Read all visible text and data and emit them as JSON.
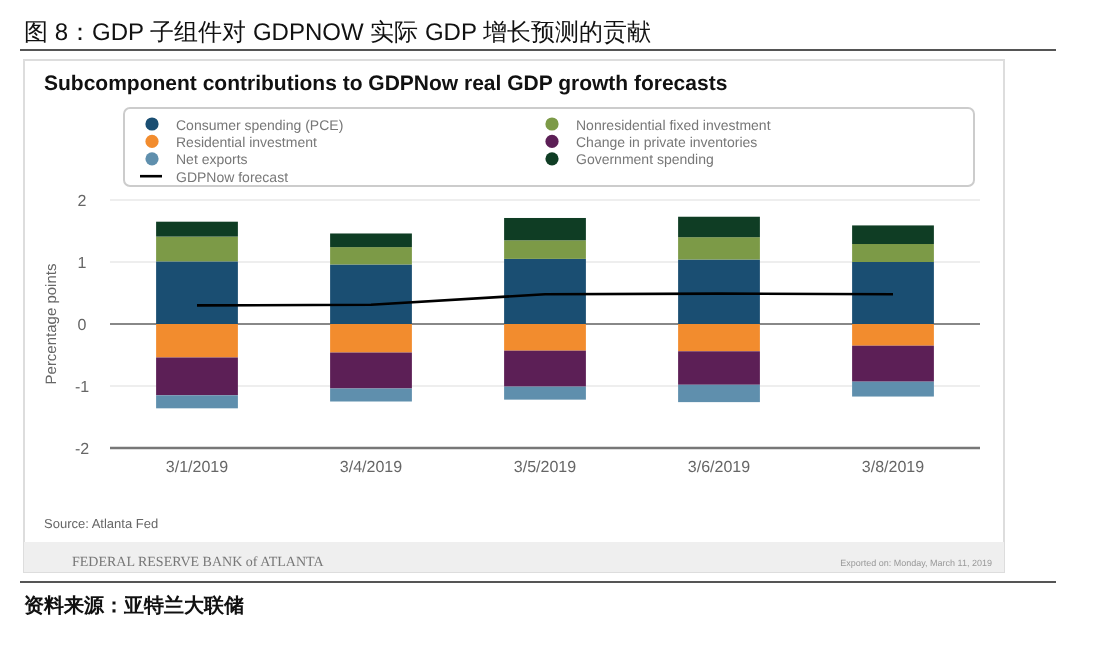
{
  "chart_data": {
    "type": "bar",
    "stacked": true,
    "title": "图 8：GDP 子组件对 GDPNOW 实际 GDP 增长预测的贡献",
    "subtitle": "Subcomponent contributions to GDPNow real GDP growth forecasts",
    "ylabel": "Percentage points",
    "categories": [
      "3/1/2019",
      "3/4/2019",
      "3/5/2019",
      "3/6/2019",
      "3/8/2019"
    ],
    "series": [
      {
        "name": "Consumer spending (PCE)",
        "color": "#1a4e72",
        "values": [
          1.01,
          0.96,
          1.05,
          1.04,
          1.0
        ]
      },
      {
        "name": "Nonresidential fixed investment",
        "color": "#7c9a47",
        "values": [
          0.4,
          0.28,
          0.3,
          0.36,
          0.29
        ]
      },
      {
        "name": "Residential investment",
        "color": "#f28c2e",
        "values": [
          -0.54,
          -0.46,
          -0.43,
          -0.44,
          -0.35
        ]
      },
      {
        "name": "Change in private inventories",
        "color": "#5c1f56",
        "values": [
          -0.61,
          -0.58,
          -0.58,
          -0.54,
          -0.58
        ]
      },
      {
        "name": "Net exports",
        "color": "#5f8fad",
        "values": [
          -0.21,
          -0.21,
          -0.21,
          -0.28,
          -0.24
        ]
      },
      {
        "name": "Government spending",
        "color": "#0f3d24",
        "values": [
          0.24,
          0.22,
          0.36,
          0.33,
          0.3
        ]
      },
      {
        "name": "GDPNow forecast",
        "type": "line",
        "color": "#000000",
        "values": [
          0.3,
          0.31,
          0.48,
          0.49,
          0.48
        ]
      }
    ],
    "ylim": [
      -2,
      2
    ],
    "yticks": [
      -2,
      -1,
      0,
      1,
      2
    ],
    "grid": "y",
    "legend": "top",
    "annotations": [
      "Source: Atlanta Fed",
      "FEDERAL RESERVE BANK of ATLANTA",
      "Exported on: Monday, March 11, 2019",
      "资料来源：亚特兰大联储"
    ]
  }
}
